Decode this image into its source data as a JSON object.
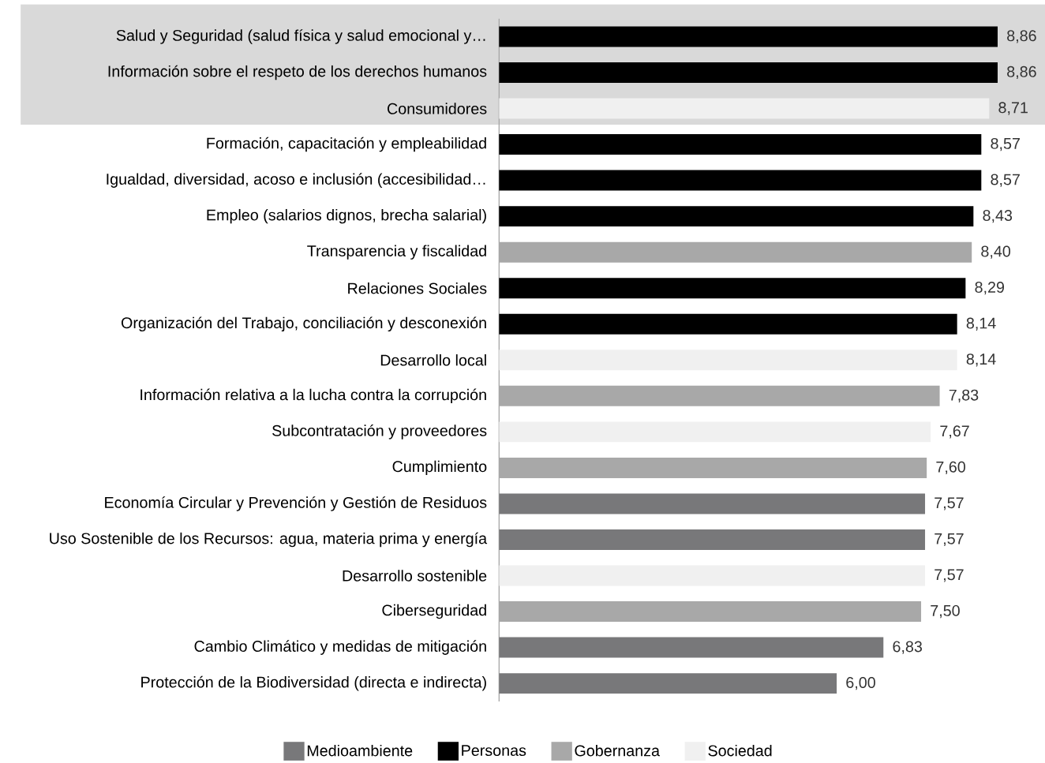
{
  "chart_data": {
    "type": "bar",
    "orientation": "horizontal",
    "legend": "bottom",
    "categories": [
      "Salud y Seguridad (salud física y salud emocional y…",
      "Información sobre el respeto de los derechos humanos",
      "Consumidores",
      "Formación, capacitación y empleabilidad",
      "Igualdad, diversidad, acoso e inclusión (accesibilidad…",
      "Empleo (salarios dignos, brecha salarial)",
      "Transparencia y fiscalidad",
      "Relaciones Sociales",
      "Organización del Trabajo, conciliación y desconexión",
      "Desarrollo local",
      "Información relativa a la lucha contra la corrupción",
      "Subcontratación y proveedores",
      "Cumplimiento",
      "Economía Circular y Prevención y Gestión de Residuos",
      "Uso Sostenible de los Recursos: agua, materia prima y energía",
      "Desarrollo sostenible",
      "Ciberseguridad",
      "Cambio Climático y medidas de mitigación",
      "Protección de la Biodiversidad (directa e indirecta)"
    ],
    "series": [
      {
        "name": "Medioambiente",
        "color": "#78787a",
        "values": [
          null,
          null,
          null,
          null,
          null,
          null,
          null,
          null,
          null,
          null,
          null,
          null,
          null,
          7.57,
          7.57,
          null,
          null,
          6.83,
          6.0
        ],
        "value_labels": [
          null,
          null,
          null,
          null,
          null,
          null,
          null,
          null,
          null,
          null,
          null,
          null,
          null,
          "7,57",
          "7,57",
          null,
          null,
          "6,83",
          "6,00"
        ]
      },
      {
        "name": "Personas",
        "color": "#000000",
        "values": [
          8.86,
          8.86,
          null,
          8.57,
          8.57,
          8.43,
          null,
          8.29,
          8.14,
          null,
          null,
          null,
          null,
          null,
          null,
          null,
          null,
          null,
          null
        ],
        "value_labels": [
          "8,86",
          "8,86",
          null,
          "8,57",
          "8,57",
          "8,43",
          null,
          "8,29",
          "8,14",
          null,
          null,
          null,
          null,
          null,
          null,
          null,
          null,
          null,
          null
        ]
      },
      {
        "name": "Gobernanza",
        "color": "#a8a8a8",
        "values": [
          null,
          null,
          null,
          null,
          null,
          null,
          8.4,
          null,
          null,
          null,
          7.83,
          null,
          7.6,
          null,
          null,
          null,
          7.5,
          null,
          null
        ],
        "value_labels": [
          null,
          null,
          null,
          null,
          null,
          null,
          "8,40",
          null,
          null,
          null,
          "7,83",
          null,
          "7,60",
          null,
          null,
          null,
          "7,50",
          null,
          null
        ]
      },
      {
        "name": "Sociedad",
        "color": "#f0f0f0",
        "values": [
          null,
          null,
          8.71,
          null,
          null,
          null,
          null,
          null,
          null,
          8.14,
          null,
          7.67,
          null,
          null,
          null,
          7.57,
          null,
          null,
          null
        ],
        "value_labels": [
          null,
          null,
          "8,71",
          null,
          null,
          null,
          null,
          null,
          null,
          "8,14",
          null,
          "7,67",
          null,
          null,
          null,
          "7,57",
          null,
          null,
          null
        ]
      }
    ],
    "bands": [
      {
        "axis": "y",
        "from": "Salud y Seguridad (salud física y salud emocional y…",
        "to": "Consumidores",
        "color": "#d9d9d9"
      }
    ]
  }
}
